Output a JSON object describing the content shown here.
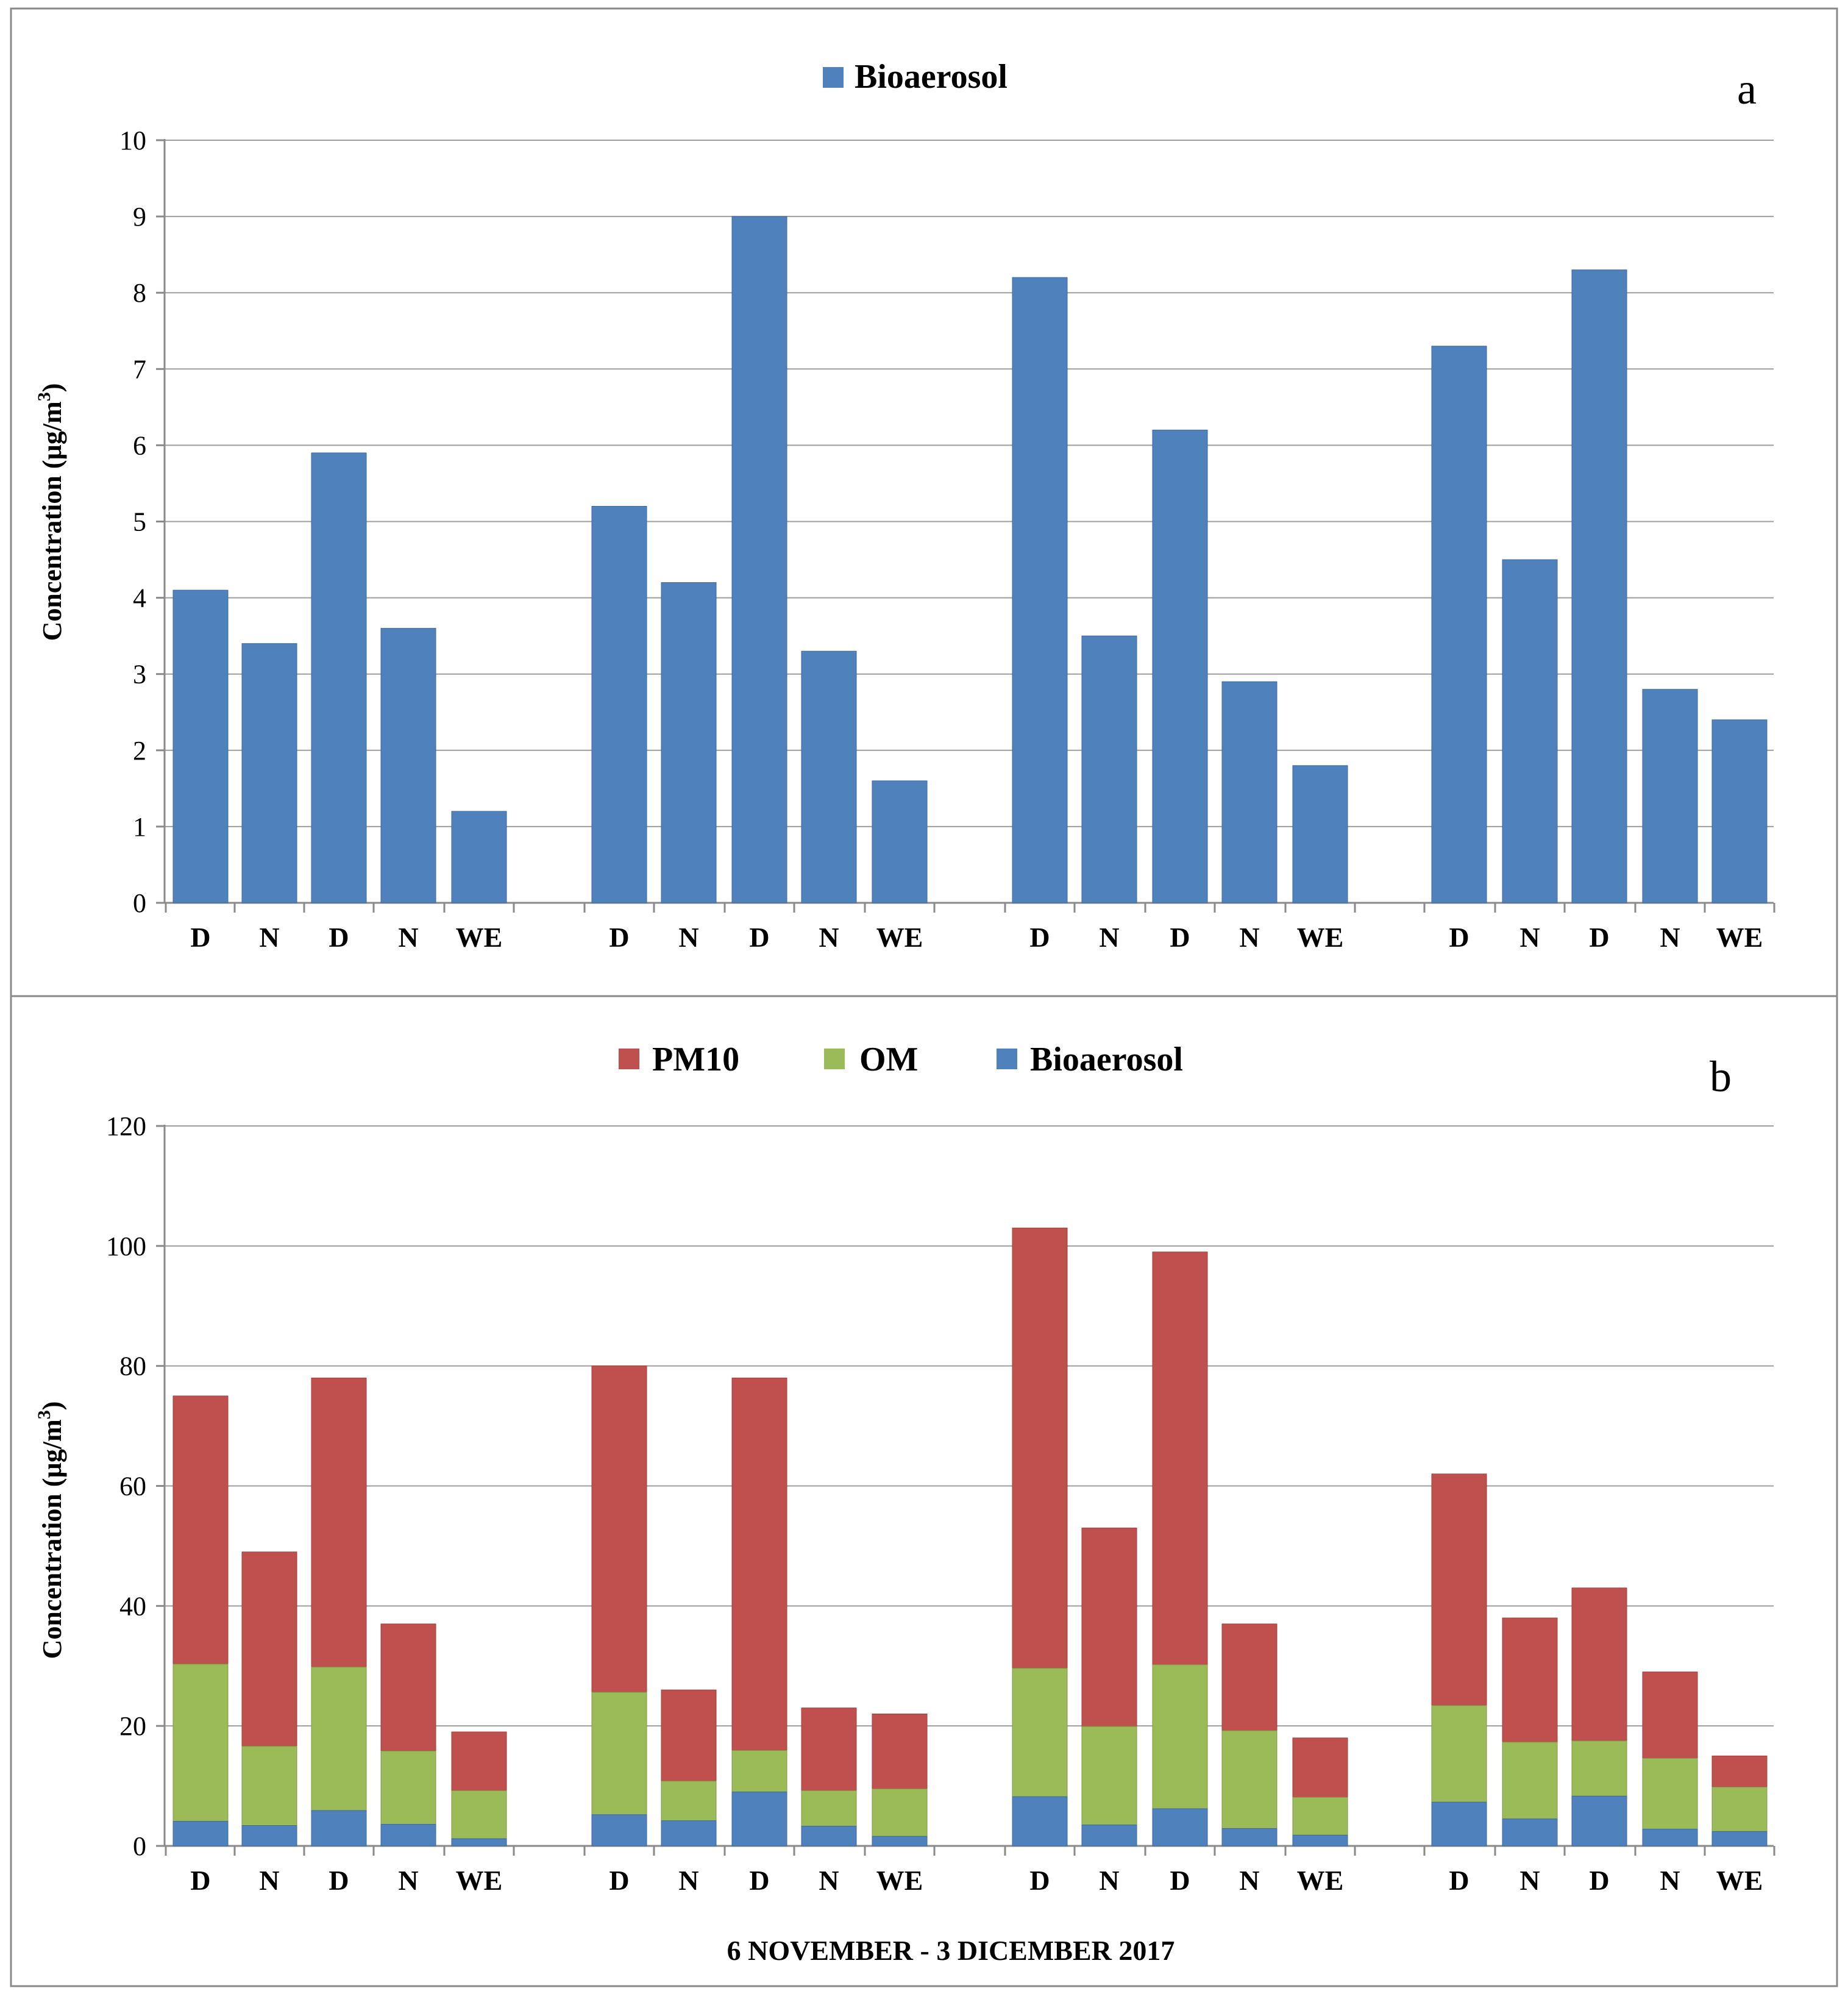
{
  "colors": {
    "bioaerosol": "#4f81bd",
    "om": "#9bbb59",
    "pm10": "#c0504d"
  },
  "chart_data": [
    {
      "type": "bar",
      "panel_label": "a",
      "legend": [
        "Bioaerosol"
      ],
      "ylabel_main": "Concentration (µg/m",
      "ylabel_sup": "3",
      "ylabel_end": ")",
      "ylim": [
        0,
        10
      ],
      "yticks": [
        "0",
        "1",
        "2",
        "3",
        "4",
        "5",
        "6",
        "7",
        "8",
        "9",
        "10"
      ],
      "groups": [
        {
          "categories": [
            "D",
            "N",
            "D",
            "N",
            "WE"
          ],
          "values": [
            4.1,
            3.4,
            5.9,
            3.6,
            1.2
          ]
        },
        {
          "categories": [
            "D",
            "N",
            "D",
            "N",
            "WE"
          ],
          "values": [
            5.2,
            4.2,
            9.0,
            3.3,
            1.6
          ]
        },
        {
          "categories": [
            "D",
            "N",
            "D",
            "N",
            "WE"
          ],
          "values": [
            8.2,
            3.5,
            6.2,
            2.9,
            1.8
          ]
        },
        {
          "categories": [
            "D",
            "N",
            "D",
            "N",
            "WE"
          ],
          "values": [
            7.3,
            4.5,
            8.3,
            2.8,
            2.4
          ]
        }
      ]
    },
    {
      "type": "bar",
      "stacked": true,
      "panel_label": "b",
      "legend": [
        "PM10",
        "OM",
        "Bioaerosol"
      ],
      "ylabel_main": "Concentration (µg/m",
      "ylabel_sup": "3",
      "ylabel_end": ")",
      "xlabel": "6 NOVEMBER - 3 DICEMBER 2017",
      "ylim": [
        0,
        120
      ],
      "yticks": [
        "0",
        "20",
        "40",
        "60",
        "80",
        "100",
        "120"
      ],
      "groups": [
        {
          "categories": [
            "D",
            "N",
            "D",
            "N",
            "WE"
          ],
          "bioaerosol": [
            4.1,
            3.4,
            5.9,
            3.6,
            1.2
          ],
          "om_top": [
            30.3,
            16.6,
            29.8,
            15.8,
            9.2
          ],
          "pm10_top": [
            75,
            49,
            78,
            37,
            19
          ]
        },
        {
          "categories": [
            "D",
            "N",
            "D",
            "N",
            "WE"
          ],
          "bioaerosol": [
            5.2,
            4.2,
            9.0,
            3.3,
            1.6
          ],
          "om_top": [
            25.6,
            10.8,
            15.9,
            9.2,
            9.5
          ],
          "pm10_top": [
            80,
            26,
            78,
            23,
            22
          ]
        },
        {
          "categories": [
            "D",
            "N",
            "D",
            "N",
            "WE"
          ],
          "bioaerosol": [
            8.2,
            3.5,
            6.2,
            2.9,
            1.8
          ],
          "om_top": [
            29.6,
            19.9,
            30.2,
            19.2,
            8.1
          ],
          "pm10_top": [
            103,
            53,
            99,
            37,
            18
          ]
        },
        {
          "categories": [
            "D",
            "N",
            "D",
            "N",
            "WE"
          ],
          "bioaerosol": [
            7.3,
            4.5,
            8.3,
            2.8,
            2.4
          ],
          "om_top": [
            23.4,
            17.3,
            17.5,
            14.6,
            9.8
          ],
          "pm10_top": [
            62,
            38,
            43,
            29,
            15
          ]
        }
      ]
    }
  ]
}
